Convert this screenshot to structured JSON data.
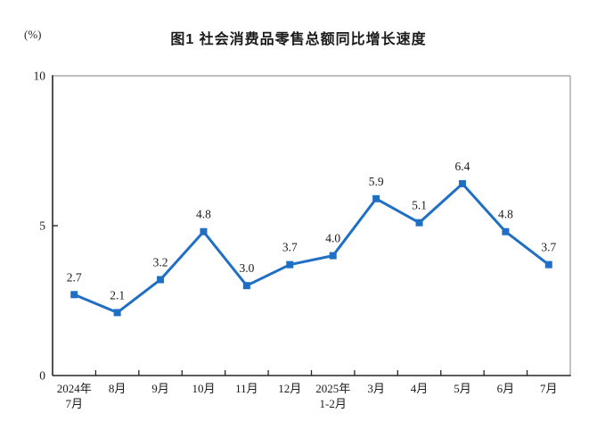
{
  "header": {
    "title": "图1 社会消费品零售总额同比增长速度",
    "unit_label": "(%)"
  },
  "chart_data": {
    "type": "line",
    "title": "图1 社会消费品零售总额同比增长速度",
    "unit": "(%)",
    "categories": [
      "2024年7月",
      "8月",
      "9月",
      "10月",
      "11月",
      "12月",
      "2025年1-2月",
      "3月",
      "4月",
      "5月",
      "6月",
      "7月"
    ],
    "x_label_lines": [
      [
        "2024年",
        "7月"
      ],
      [
        "8月"
      ],
      [
        "9月"
      ],
      [
        "10月"
      ],
      [
        "11月"
      ],
      [
        "12月"
      ],
      [
        "2025年",
        "1-2月"
      ],
      [
        "3月"
      ],
      [
        "4月"
      ],
      [
        "5月"
      ],
      [
        "6月"
      ],
      [
        "7月"
      ]
    ],
    "values": [
      2.7,
      2.1,
      3.2,
      4.8,
      3.0,
      3.7,
      4.0,
      5.9,
      5.1,
      6.4,
      4.8,
      3.7
    ],
    "data_labels": [
      "2.7",
      "2.1",
      "3.2",
      "4.8",
      "3.0",
      "3.7",
      "4.0",
      "5.9",
      "5.1",
      "6.4",
      "4.8",
      "3.7"
    ],
    "ylim": [
      0,
      10
    ],
    "yticks": [
      0,
      5,
      10
    ],
    "ytick_labels": [
      "0",
      "5",
      "10"
    ],
    "grid": false,
    "legend": "none",
    "marker": "square",
    "colors": {
      "line": "#1F6FC5",
      "marker": "#1F6FC5",
      "text": "#1a1a1a",
      "axis": "#262626",
      "frame": "#a8a8a8"
    }
  }
}
